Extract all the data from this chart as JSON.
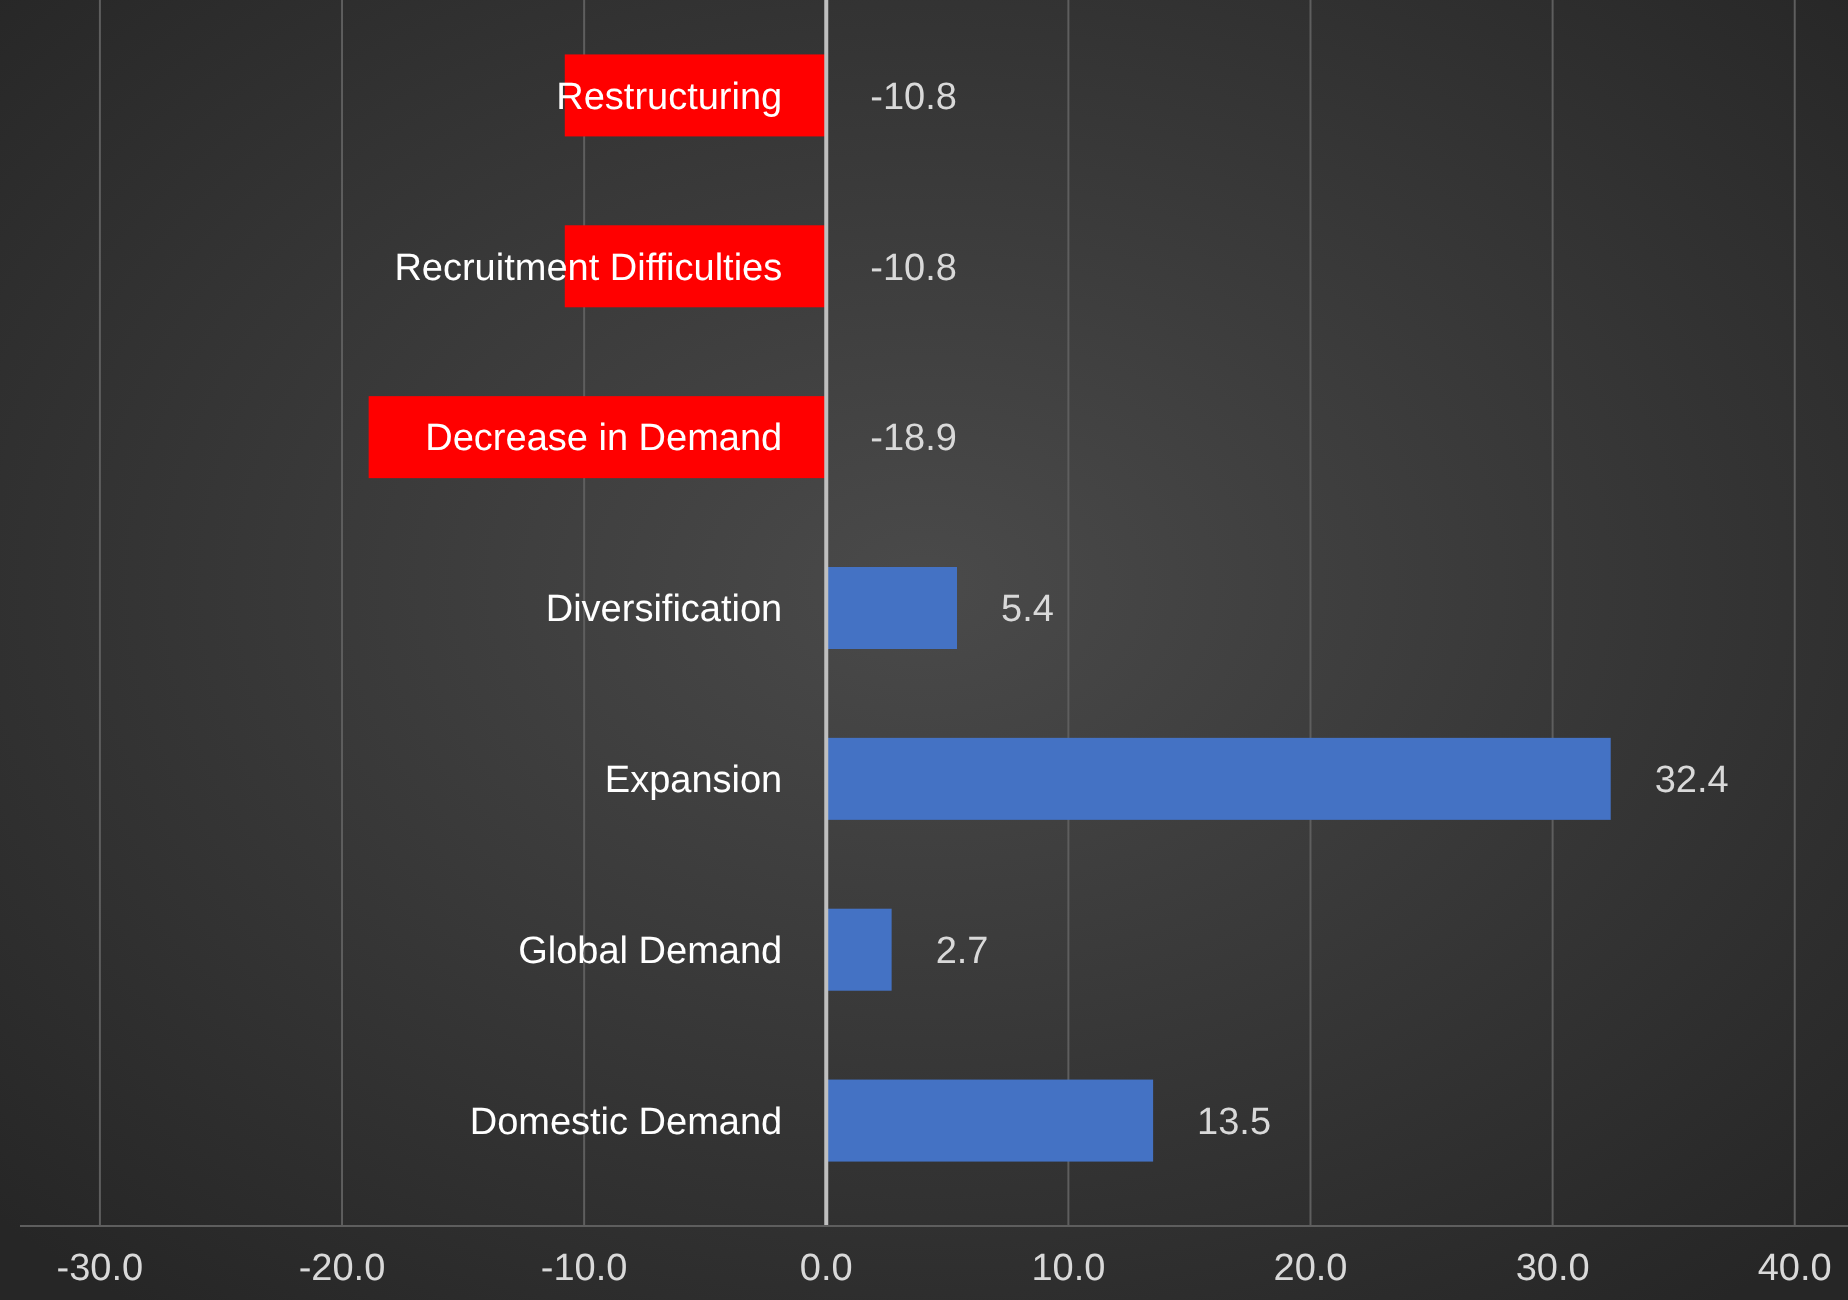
{
  "chart_data": {
    "type": "bar",
    "orientation": "horizontal",
    "categories": [
      "Restructuring",
      "Recruitment Difficulties",
      "Decrease in Demand",
      "Diversification",
      "Expansion",
      "Global Demand",
      "Domestic Demand"
    ],
    "values": [
      -10.8,
      -10.8,
      -18.9,
      5.4,
      32.4,
      2.7,
      13.5
    ],
    "colors": [
      "#ff0000",
      "#ff0000",
      "#ff0000",
      "#4472c4",
      "#4472c4",
      "#4472c4",
      "#4472c4"
    ],
    "xlim": [
      -33.3,
      42.2
    ],
    "xticks": [
      {
        "value": -30,
        "label": "-30.0"
      },
      {
        "value": -20,
        "label": "-20.0"
      },
      {
        "value": -10,
        "label": "-10.0"
      },
      {
        "value": 0,
        "label": "0.0"
      },
      {
        "value": 10,
        "label": "10.0"
      },
      {
        "value": 20,
        "label": "20.0"
      },
      {
        "value": 30,
        "label": "30.0"
      },
      {
        "value": 40,
        "label": "40.0"
      }
    ],
    "grid": "x",
    "data_labels": true
  }
}
